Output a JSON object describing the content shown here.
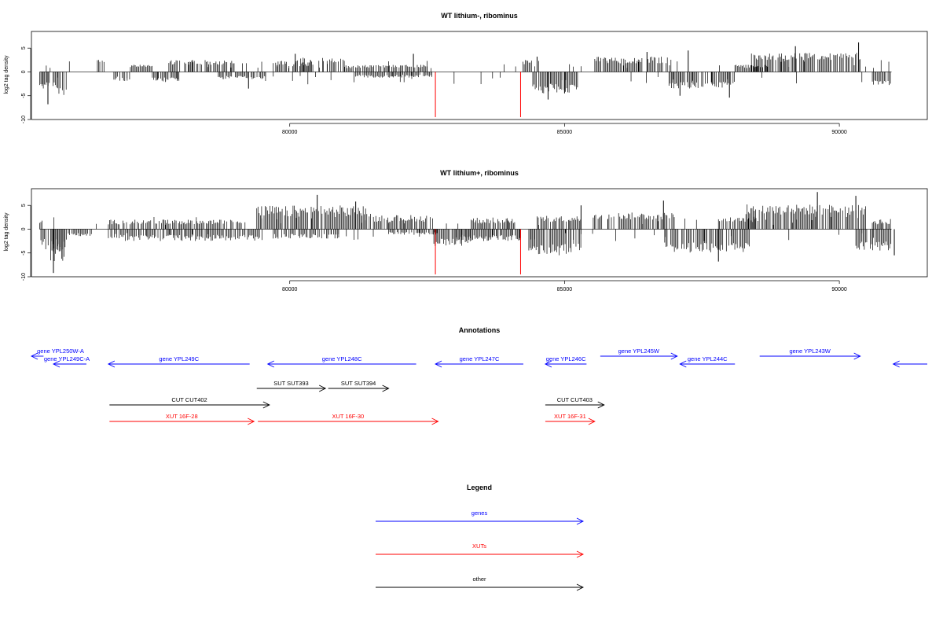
{
  "colors": {
    "genes": "#0000ff",
    "xuts": "#ff0000",
    "other": "#000000",
    "bars": "#000000",
    "axis": "#000000"
  },
  "chart_data": [
    {
      "type": "bar",
      "title": "WT lithium-, ribominus",
      "ylabel": "log2 tag density",
      "xlim": [
        75300,
        91600
      ],
      "ylim": [
        -10,
        8.5
      ],
      "x_ticks": [
        80000,
        85000,
        90000
      ],
      "y_ticks": [
        5,
        0,
        -5,
        -10
      ],
      "regions": [
        {
          "from": 75450,
          "to": 75800,
          "v": -3.5,
          "lo": -2.0
        },
        {
          "from": 75800,
          "to": 75950,
          "v": -5.0,
          "lo": -3.0
        },
        {
          "from": 76500,
          "to": 76600,
          "v": 2.8,
          "lo": 2.0
        },
        {
          "from": 76800,
          "to": 77100,
          "v": -2.0,
          "lo": -1.0
        },
        {
          "from": 77100,
          "to": 77500,
          "v": 1.5,
          "lo": 1.0
        },
        {
          "from": 77500,
          "to": 78000,
          "v": -2.0,
          "lo": -1.0
        },
        {
          "from": 77800,
          "to": 79000,
          "v": 2.5,
          "lo": 1.5
        },
        {
          "from": 78700,
          "to": 79600,
          "v": -1.5,
          "lo": -0.8
        },
        {
          "from": 79700,
          "to": 80400,
          "v": 2.5,
          "lo": 1.2
        },
        {
          "from": 80200,
          "to": 81000,
          "v": 3.0,
          "lo": 1.5
        },
        {
          "from": 81000,
          "to": 82500,
          "v": 1.5,
          "lo": 0.8
        },
        {
          "from": 81200,
          "to": 82600,
          "v": -1.2,
          "lo": -0.6
        },
        {
          "from": 84200,
          "to": 84400,
          "v": 2.5,
          "lo": 1.5
        },
        {
          "from": 84400,
          "to": 85250,
          "v": -4.5,
          "lo": -2.5
        },
        {
          "from": 85550,
          "to": 86950,
          "v": 3.2,
          "lo": 1.8
        },
        {
          "from": 86900,
          "to": 88100,
          "v": -3.5,
          "lo": -2.0
        },
        {
          "from": 88100,
          "to": 88700,
          "v": 1.5,
          "lo": 0.8
        },
        {
          "from": 88400,
          "to": 90400,
          "v": 4.0,
          "lo": 2.5
        },
        {
          "from": 90600,
          "to": 90950,
          "v": -2.8,
          "lo": -1.8
        }
      ],
      "spikes": [
        {
          "x": 75600,
          "v": -6.8
        },
        {
          "x": 79250,
          "v": -3.5
        },
        {
          "x": 80100,
          "v": 3.8
        },
        {
          "x": 82250,
          "v": 3.8
        },
        {
          "x": 84500,
          "v": 3.2
        },
        {
          "x": 84700,
          "v": -5.8
        },
        {
          "x": 85000,
          "v": -4.5
        },
        {
          "x": 86500,
          "v": 4.2
        },
        {
          "x": 87250,
          "v": 4.5
        },
        {
          "x": 87100,
          "v": -5.0
        },
        {
          "x": 88000,
          "v": -5.4
        },
        {
          "x": 89200,
          "v": 5.4
        },
        {
          "x": 90350,
          "v": 6.2
        }
      ],
      "red_spikes": [
        {
          "x": 82650,
          "v": -9.5
        },
        {
          "x": 84200,
          "v": -9.5
        }
      ]
    },
    {
      "type": "bar",
      "title": "WT lithium+, ribominus",
      "ylabel": "log2 tag density",
      "xlim": [
        75300,
        91600
      ],
      "ylim": [
        -10,
        8.5
      ],
      "x_ticks": [
        80000,
        85000,
        90000
      ],
      "y_ticks": [
        5,
        0,
        -5,
        -10
      ],
      "regions": [
        {
          "from": 75450,
          "to": 75500,
          "v": 2.0,
          "lo": 1.0
        },
        {
          "from": 75450,
          "to": 75950,
          "v": -4.5,
          "lo": -2.0
        },
        {
          "from": 75650,
          "to": 75950,
          "v": -7.0,
          "lo": -4.0
        },
        {
          "from": 75950,
          "to": 76400,
          "v": -1.5,
          "lo": -0.8
        },
        {
          "from": 76700,
          "to": 79200,
          "v": 2.0,
          "lo": 1.0
        },
        {
          "from": 76700,
          "to": 79500,
          "v": -2.5,
          "lo": -1.2
        },
        {
          "from": 79400,
          "to": 81500,
          "v": 5.0,
          "lo": 2.5
        },
        {
          "from": 79700,
          "to": 80900,
          "v": -2.0,
          "lo": -1.0
        },
        {
          "from": 81500,
          "to": 82600,
          "v": 3.0,
          "lo": 1.5
        },
        {
          "from": 81800,
          "to": 82700,
          "v": -1.2,
          "lo": -0.6
        },
        {
          "from": 82600,
          "to": 83300,
          "v": -3.5,
          "lo": -2.0
        },
        {
          "from": 83300,
          "to": 84150,
          "v": 2.5,
          "lo": 1.2
        },
        {
          "from": 83000,
          "to": 84200,
          "v": -2.5,
          "lo": -1.2
        },
        {
          "from": 84350,
          "to": 85300,
          "v": -5.5,
          "lo": -3.0
        },
        {
          "from": 84500,
          "to": 85300,
          "v": 2.8,
          "lo": 1.5
        },
        {
          "from": 85500,
          "to": 87000,
          "v": 3.5,
          "lo": 2.0
        },
        {
          "from": 86800,
          "to": 88400,
          "v": -5.0,
          "lo": -2.8
        },
        {
          "from": 87800,
          "to": 88500,
          "v": 2.5,
          "lo": 1.5
        },
        {
          "from": 88300,
          "to": 90500,
          "v": 5.2,
          "lo": 3.0
        },
        {
          "from": 90300,
          "to": 90950,
          "v": -4.5,
          "lo": -2.5
        },
        {
          "from": 90600,
          "to": 90950,
          "v": 2.2,
          "lo": 1.0
        }
      ],
      "spikes": [
        {
          "x": 75700,
          "v": -9.2
        },
        {
          "x": 80500,
          "v": 7.2
        },
        {
          "x": 81200,
          "v": 5.8
        },
        {
          "x": 85300,
          "v": 5.0
        },
        {
          "x": 86800,
          "v": 6.0
        },
        {
          "x": 87800,
          "v": -6.8
        },
        {
          "x": 89600,
          "v": 7.8
        },
        {
          "x": 90300,
          "v": 7.0
        },
        {
          "x": 91000,
          "v": -5.5
        }
      ],
      "red_spikes": [
        {
          "x": 82650,
          "v": -9.5
        },
        {
          "x": 84200,
          "v": -9.5
        }
      ]
    }
  ],
  "annotations": {
    "title": "Annotations",
    "features": [
      {
        "label": "gene YPL250W-A",
        "kind": "gene",
        "dir": "-",
        "start": 75300,
        "end": 75520,
        "row": 0
      },
      {
        "label": "gene YPL249C-A",
        "kind": "gene",
        "dir": "-",
        "start": 75700,
        "end": 76300,
        "row": 1
      },
      {
        "label": "gene YPL249C",
        "kind": "gene",
        "dir": "-",
        "start": 76700,
        "end": 79270,
        "row": 1
      },
      {
        "label": "gene YPL248C",
        "kind": "gene",
        "dir": "-",
        "start": 79600,
        "end": 82300,
        "row": 1
      },
      {
        "label": "gene YPL247C",
        "kind": "gene",
        "dir": "-",
        "start": 82650,
        "end": 84250,
        "row": 1
      },
      {
        "label": "gene YPL246C",
        "kind": "gene",
        "dir": "-",
        "start": 84650,
        "end": 85400,
        "row": 1
      },
      {
        "label": "gene YPL245W",
        "kind": "gene",
        "dir": "+",
        "start": 85650,
        "end": 87050,
        "row": 0
      },
      {
        "label": "gene YPL244C",
        "kind": "gene",
        "dir": "-",
        "start": 87100,
        "end": 88100,
        "row": 1
      },
      {
        "label": "gene YPL243W",
        "kind": "gene",
        "dir": "+",
        "start": 88550,
        "end": 90380,
        "row": 0
      },
      {
        "label": "",
        "kind": "gene",
        "dir": "-",
        "start": 90980,
        "end": 91600,
        "row": 1
      },
      {
        "label": "SUT SUT393",
        "kind": "other",
        "dir": "+",
        "start": 79400,
        "end": 80650,
        "row": 2
      },
      {
        "label": "SUT SUT394",
        "kind": "other",
        "dir": "+",
        "start": 80700,
        "end": 81800,
        "row": 2
      },
      {
        "label": "CUT CUT402",
        "kind": "other",
        "dir": "+",
        "start": 76720,
        "end": 79630,
        "row": 3
      },
      {
        "label": "CUT CUT403",
        "kind": "other",
        "dir": "+",
        "start": 84650,
        "end": 85720,
        "row": 3
      },
      {
        "label": "XUT 16F-28",
        "kind": "xut",
        "dir": "+",
        "start": 76720,
        "end": 79350,
        "row": 4
      },
      {
        "label": "XUT 16F-30",
        "kind": "xut",
        "dir": "+",
        "start": 79420,
        "end": 82700,
        "row": 4
      },
      {
        "label": "XUT 16F-31",
        "kind": "xut",
        "dir": "+",
        "start": 84650,
        "end": 85550,
        "row": 4
      }
    ]
  },
  "legend": {
    "title": "Legend",
    "items": [
      {
        "label": "genes",
        "kind": "gene"
      },
      {
        "label": "XUTs",
        "kind": "xut"
      },
      {
        "label": "other",
        "kind": "other"
      }
    ]
  }
}
